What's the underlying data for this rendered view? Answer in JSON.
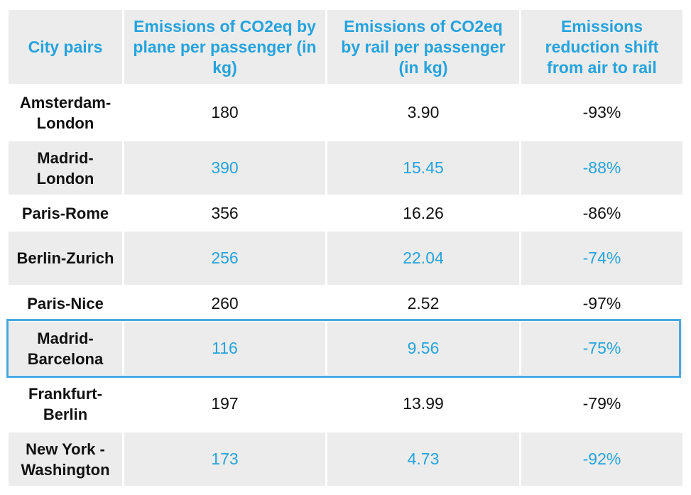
{
  "chart_data": {
    "type": "table",
    "columns": [
      "City pairs",
      "Emissions of CO2eq by plane per passenger (in kg)",
      "Emissions of CO2eq by rail per passenger (in kg)",
      "Emissions reduction shift from air to rail"
    ],
    "rows": [
      {
        "city": "Amsterdam-London",
        "plane": "180",
        "rail": "3.90",
        "reduction": "-93%"
      },
      {
        "city": "Madrid-London",
        "plane": "390",
        "rail": "15.45",
        "reduction": "-88%"
      },
      {
        "city": "Paris-Rome",
        "plane": "356",
        "rail": "16.26",
        "reduction": "-86%"
      },
      {
        "city": "Berlin-Zurich",
        "plane": "256",
        "rail": "22.04",
        "reduction": "-74%"
      },
      {
        "city": "Paris-Nice",
        "plane": "260",
        "rail": "2.52",
        "reduction": "-97%"
      },
      {
        "city": "Madrid-Barcelona",
        "plane": "116",
        "rail": "9.56",
        "reduction": "-75%"
      },
      {
        "city": "Frankfurt-Berlin",
        "plane": "197",
        "rail": "13.99",
        "reduction": "-79%"
      },
      {
        "city": "New York -Washington",
        "plane": "173",
        "rail": "4.73",
        "reduction": "-92%"
      }
    ],
    "highlighted_row": "Madrid-Barcelona"
  },
  "colors": {
    "header_text": "#25a3dd",
    "stripe_background": "#ececec",
    "stripe_value_text": "#25a3dd",
    "body_text": "#111111",
    "highlight_border": "#4aa8e0"
  }
}
